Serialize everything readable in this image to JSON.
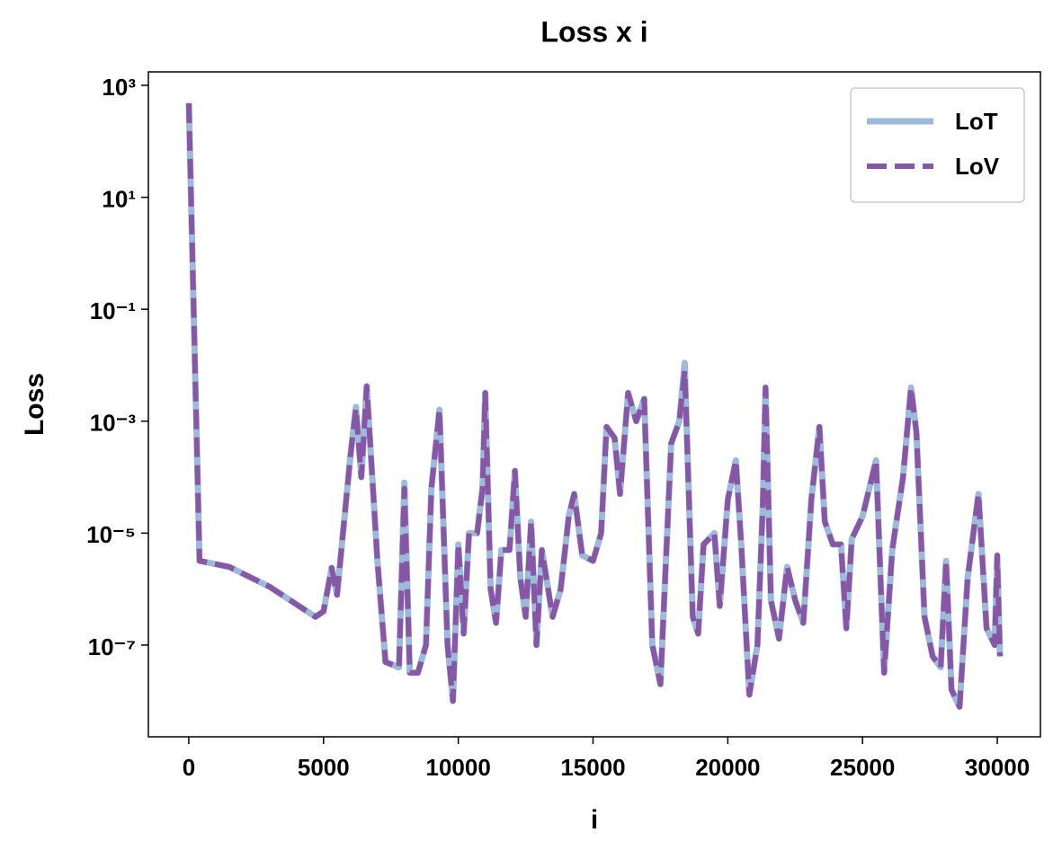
{
  "chart_data": {
    "type": "line",
    "title": "Loss x i",
    "xlabel": "i",
    "ylabel": "Loss",
    "yscale": "log",
    "legend": "upper right",
    "xlim": [
      -1500,
      31600
    ],
    "ylim": [
      2.3e-09,
      1740
    ],
    "xticks": [
      0,
      5000,
      10000,
      15000,
      20000,
      25000,
      30000
    ],
    "yticks": [
      {
        "value": 1000,
        "label": "10³"
      },
      {
        "value": 10,
        "label": "10¹"
      },
      {
        "value": 0.1,
        "label": "10⁻¹"
      },
      {
        "value": 0.001,
        "label": "10⁻³"
      },
      {
        "value": 1e-05,
        "label": "10⁻⁵"
      },
      {
        "value": 1e-07,
        "label": "10⁻⁷"
      }
    ],
    "x": [
      0,
      400,
      1500,
      3000,
      4700,
      5000,
      5300,
      5500,
      6000,
      6200,
      6400,
      6600,
      7000,
      7300,
      7800,
      8000,
      8200,
      8500,
      8800,
      9000,
      9300,
      9600,
      9800,
      10000,
      10200,
      10400,
      10700,
      10900,
      11000,
      11200,
      11400,
      11600,
      11900,
      12100,
      12300,
      12500,
      12700,
      12900,
      13100,
      13500,
      13800,
      14100,
      14300,
      14600,
      15000,
      15300,
      15500,
      15800,
      16000,
      16300,
      16600,
      16900,
      17200,
      17500,
      17900,
      18200,
      18400,
      18700,
      18900,
      19100,
      19500,
      19700,
      20000,
      20300,
      20500,
      20800,
      21100,
      21300,
      21400,
      21600,
      21900,
      22200,
      22500,
      22800,
      23100,
      23400,
      23600,
      23900,
      24200,
      24400,
      24600,
      25000,
      25500,
      25800,
      26100,
      26500,
      26800,
      27000,
      27300,
      27600,
      27900,
      28100,
      28300,
      28600,
      28900,
      29300,
      29600,
      29900,
      30000,
      30100
    ],
    "series": [
      {
        "name": "LoT",
        "color": "#9dbbd9",
        "dash": false,
        "values": [
          480,
          3.2e-06,
          2.5e-06,
          1.1e-06,
          3.2e-07,
          4e-07,
          2.4e-06,
          7.9e-07,
          0.00025,
          0.0018,
          0.0001,
          0.0042,
          3.2e-06,
          5e-08,
          4e-08,
          8e-05,
          3.2e-08,
          3.2e-08,
          1e-07,
          6.3e-05,
          0.0016,
          1e-07,
          1e-08,
          6.3e-06,
          1.6e-07,
          1e-05,
          1e-05,
          6.3e-05,
          0.0032,
          1e-06,
          2.5e-07,
          5e-06,
          5e-06,
          0.00013,
          1.6e-06,
          3.2e-07,
          1.6e-05,
          1e-07,
          5e-06,
          3.2e-07,
          1e-06,
          2e-05,
          5e-05,
          4e-06,
          3.2e-06,
          1e-05,
          0.00079,
          0.0005,
          5e-05,
          0.0032,
          0.001,
          0.0025,
          1e-07,
          2e-08,
          0.0004,
          0.001,
          0.011,
          3.2e-07,
          1.6e-07,
          6.3e-06,
          1e-05,
          5e-07,
          4e-05,
          0.0002,
          6.3e-06,
          1.3e-08,
          1e-07,
          3.2e-05,
          0.004,
          6.3e-07,
          1.3e-07,
          2.5e-06,
          6.3e-07,
          2.5e-07,
          4e-05,
          0.00079,
          1.6e-05,
          6.3e-06,
          6.3e-06,
          2e-07,
          7.9e-06,
          2e-05,
          0.0002,
          3.2e-08,
          5e-06,
          0.0001,
          0.004,
          0.00063,
          3.2e-07,
          6.3e-08,
          4e-08,
          3.2e-06,
          1.6e-08,
          7.9e-09,
          1.6e-06,
          5e-05,
          2e-07,
          1e-07,
          4e-06,
          6.3e-08
        ]
      },
      {
        "name": "LoV",
        "color": "#8856a7",
        "dash": true,
        "values": [
          480,
          3.2e-06,
          2.5e-06,
          1.1e-06,
          3.2e-07,
          4e-07,
          2.4e-06,
          7.9e-07,
          0.00025,
          0.0017,
          0.0001,
          0.0042,
          3.2e-06,
          5e-08,
          4e-08,
          6.3e-05,
          3.2e-08,
          3.2e-08,
          1e-07,
          6.3e-05,
          0.0016,
          1e-07,
          1e-08,
          6.3e-06,
          1.6e-07,
          1e-05,
          1e-05,
          6.3e-05,
          0.0032,
          1e-06,
          2.5e-07,
          5e-06,
          5e-06,
          0.00013,
          1.6e-06,
          3.2e-07,
          1.6e-05,
          1e-07,
          5e-06,
          3.2e-07,
          1e-06,
          2e-05,
          5e-05,
          4e-06,
          3.2e-06,
          1e-05,
          0.00079,
          0.0005,
          5e-05,
          0.0032,
          0.001,
          0.0025,
          1e-07,
          2e-08,
          0.0004,
          0.001,
          0.0079,
          3.2e-07,
          1.6e-07,
          6.3e-06,
          1e-05,
          5e-07,
          4e-05,
          0.0002,
          6.3e-06,
          1.3e-08,
          1e-07,
          3.2e-05,
          0.004,
          6.3e-07,
          1.3e-07,
          2.5e-06,
          6.3e-07,
          2.5e-07,
          4e-05,
          0.00079,
          1.6e-05,
          6.3e-06,
          6.3e-06,
          2e-07,
          7.9e-06,
          2e-05,
          0.0002,
          3.2e-08,
          5e-06,
          0.0001,
          0.004,
          0.00063,
          3.2e-07,
          6.3e-08,
          4e-08,
          3.2e-06,
          1.6e-08,
          7.9e-09,
          1.6e-06,
          5e-05,
          2e-07,
          1e-07,
          4e-06,
          6.3e-08
        ]
      }
    ]
  }
}
